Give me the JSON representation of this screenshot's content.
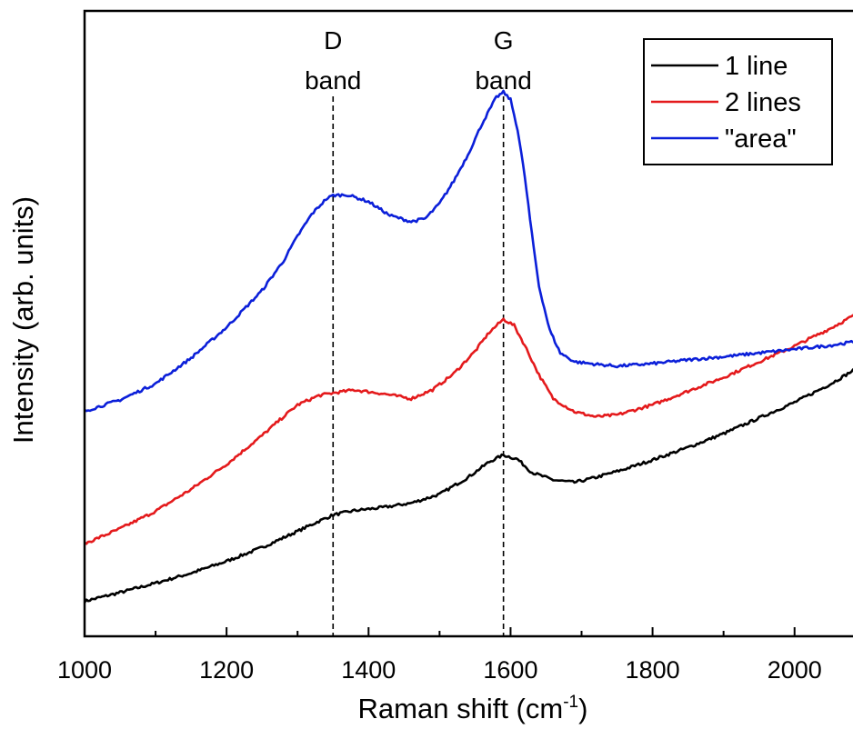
{
  "chart_data": {
    "type": "line",
    "title": "",
    "xlabel": "Raman shift (cm",
    "xlabel_sup": "-1",
    "xlabel_close": ")",
    "ylabel": "Intensity (arb. units)",
    "xlim": [
      1000,
      2090
    ],
    "ylim": [
      0,
      100
    ],
    "x_ticks": [
      1000,
      1200,
      1400,
      1600,
      1800,
      2000
    ],
    "y_tick_labels_shown": false,
    "grid": false,
    "legend_position": "top-right",
    "annotations": [
      {
        "top": "D",
        "bottom": "band",
        "x": 1350
      },
      {
        "top": "G",
        "bottom": "band",
        "x": 1590
      }
    ],
    "series": [
      {
        "name": "1 line",
        "color": "#000000",
        "points": [
          [
            1000,
            5.6
          ],
          [
            1050,
            7.0
          ],
          [
            1100,
            8.5
          ],
          [
            1150,
            10.1
          ],
          [
            1200,
            12.0
          ],
          [
            1250,
            14.2
          ],
          [
            1300,
            16.8
          ],
          [
            1330,
            18.4
          ],
          [
            1350,
            19.4
          ],
          [
            1380,
            20.1
          ],
          [
            1420,
            20.6
          ],
          [
            1460,
            21.3
          ],
          [
            1500,
            22.7
          ],
          [
            1540,
            25.4
          ],
          [
            1570,
            27.9
          ],
          [
            1590,
            29.0
          ],
          [
            1610,
            28.3
          ],
          [
            1630,
            26.2
          ],
          [
            1660,
            25.0
          ],
          [
            1690,
            24.6
          ],
          [
            1720,
            25.4
          ],
          [
            1760,
            26.7
          ],
          [
            1800,
            28.2
          ],
          [
            1850,
            30.2
          ],
          [
            1900,
            32.4
          ],
          [
            1950,
            34.9
          ],
          [
            2000,
            37.4
          ],
          [
            2050,
            40.3
          ],
          [
            2090,
            43.0
          ]
        ]
      },
      {
        "name": "2 lines",
        "color": "#e41a1c",
        "points": [
          [
            1000,
            14.8
          ],
          [
            1050,
            17.2
          ],
          [
            1100,
            20.0
          ],
          [
            1150,
            23.5
          ],
          [
            1200,
            27.5
          ],
          [
            1250,
            32.1
          ],
          [
            1280,
            35.1
          ],
          [
            1300,
            37.0
          ],
          [
            1330,
            38.5
          ],
          [
            1350,
            38.9
          ],
          [
            1380,
            39.4
          ],
          [
            1420,
            38.8
          ],
          [
            1460,
            38.0
          ],
          [
            1490,
            39.4
          ],
          [
            1520,
            42.0
          ],
          [
            1550,
            45.6
          ],
          [
            1570,
            48.6
          ],
          [
            1590,
            50.7
          ],
          [
            1605,
            49.7
          ],
          [
            1620,
            46.5
          ],
          [
            1640,
            41.8
          ],
          [
            1660,
            38.0
          ],
          [
            1690,
            35.9
          ],
          [
            1720,
            35.1
          ],
          [
            1750,
            35.4
          ],
          [
            1800,
            37.0
          ],
          [
            1850,
            39.2
          ],
          [
            1900,
            41.4
          ],
          [
            1950,
            43.9
          ],
          [
            2000,
            46.4
          ],
          [
            2050,
            49.2
          ],
          [
            2090,
            51.7
          ]
        ]
      },
      {
        "name": "\"area\"",
        "color": "#0b1fd9",
        "points": [
          [
            1000,
            36.0
          ],
          [
            1050,
            37.8
          ],
          [
            1100,
            40.4
          ],
          [
            1150,
            44.5
          ],
          [
            1200,
            49.4
          ],
          [
            1250,
            55.3
          ],
          [
            1280,
            60.0
          ],
          [
            1300,
            64.0
          ],
          [
            1320,
            67.5
          ],
          [
            1340,
            69.9
          ],
          [
            1350,
            70.5
          ],
          [
            1370,
            70.6
          ],
          [
            1400,
            69.5
          ],
          [
            1430,
            67.3
          ],
          [
            1460,
            66.3
          ],
          [
            1480,
            66.8
          ],
          [
            1500,
            69.2
          ],
          [
            1520,
            72.8
          ],
          [
            1540,
            77.0
          ],
          [
            1560,
            82.0
          ],
          [
            1580,
            86.2
          ],
          [
            1590,
            87.0
          ],
          [
            1600,
            85.8
          ],
          [
            1610,
            81.0
          ],
          [
            1620,
            73.5
          ],
          [
            1630,
            64.3
          ],
          [
            1640,
            56.0
          ],
          [
            1655,
            49.0
          ],
          [
            1670,
            45.3
          ],
          [
            1690,
            43.9
          ],
          [
            1720,
            43.5
          ],
          [
            1750,
            43.2
          ],
          [
            1800,
            43.6
          ],
          [
            1850,
            44.2
          ],
          [
            1900,
            44.7
          ],
          [
            1950,
            45.3
          ],
          [
            2000,
            45.9
          ],
          [
            2050,
            46.5
          ],
          [
            2090,
            47.2
          ]
        ]
      }
    ]
  }
}
